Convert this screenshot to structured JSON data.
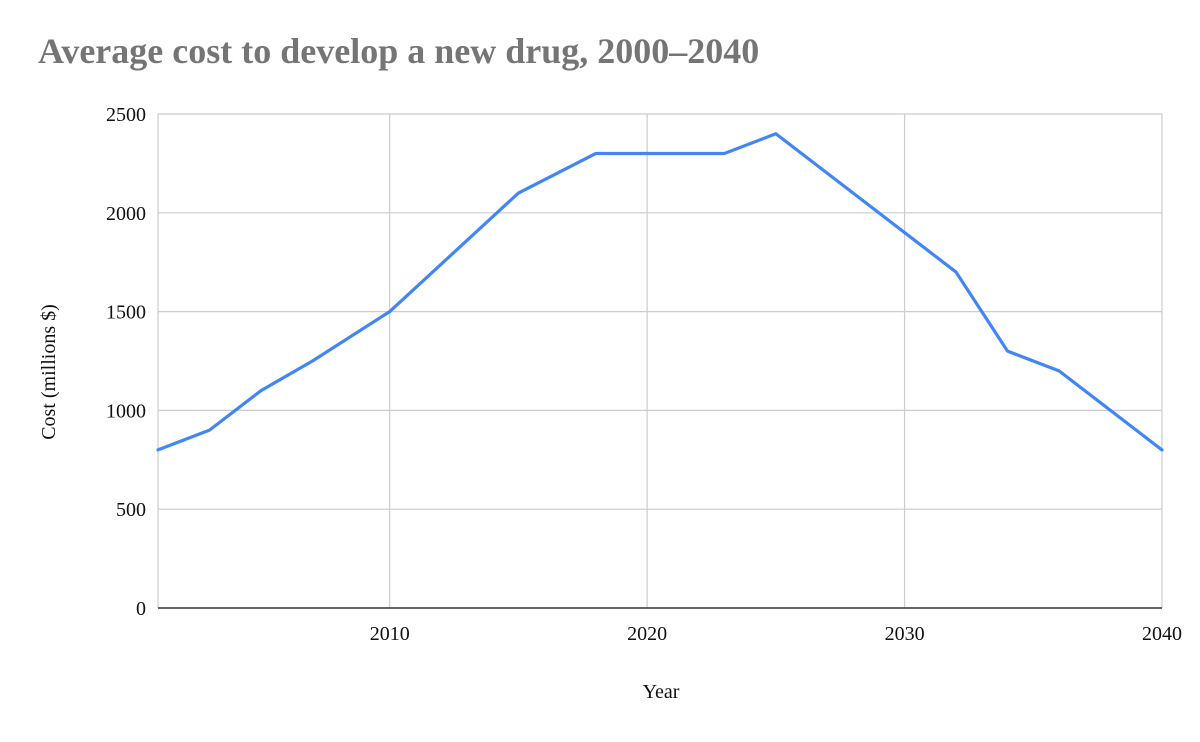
{
  "chart_data": {
    "type": "line",
    "title": "Average cost to develop a new drug, 2000–2040",
    "xlabel": "Year",
    "ylabel": "Cost (millions $)",
    "xlim": [
      2001,
      2040
    ],
    "ylim": [
      0,
      2500
    ],
    "x_ticks": [
      2010,
      2020,
      2030,
      2040
    ],
    "y_ticks": [
      0,
      500,
      1000,
      1500,
      2000,
      2500
    ],
    "grid": true,
    "series": [
      {
        "color": "#4285f4",
        "points": [
          {
            "x": 2001,
            "y": 800
          },
          {
            "x": 2003,
            "y": 900
          },
          {
            "x": 2005,
            "y": 1100
          },
          {
            "x": 2007,
            "y": 1250
          },
          {
            "x": 2010,
            "y": 1500
          },
          {
            "x": 2015,
            "y": 2100
          },
          {
            "x": 2018,
            "y": 2300
          },
          {
            "x": 2020,
            "y": 2300
          },
          {
            "x": 2023,
            "y": 2300
          },
          {
            "x": 2025,
            "y": 2400
          },
          {
            "x": 2030,
            "y": 1900
          },
          {
            "x": 2032,
            "y": 1700
          },
          {
            "x": 2034,
            "y": 1300
          },
          {
            "x": 2036,
            "y": 1200
          },
          {
            "x": 2040,
            "y": 800
          }
        ]
      }
    ]
  }
}
